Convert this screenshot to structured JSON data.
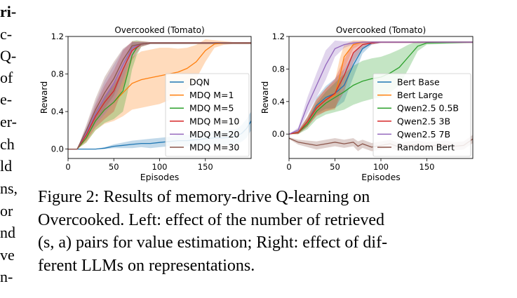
{
  "left_column": {
    "lines": [
      "ri-",
      "c-",
      "Q-",
      "of",
      "e-",
      "er-",
      "ch",
      "ld",
      "ns,",
      "or",
      "nd",
      "ve",
      "n-"
    ]
  },
  "caption": {
    "line1": "Figure 2:  Results of memory-drive Q-learning on",
    "line2": "Overcooked. Left: effect of the number of retrieved",
    "line3_math": "(s, a)",
    "line3_rest": " pairs for value estimation; Right: effect of dif-",
    "line4": "ferent LLMs on representations."
  },
  "chart_data": [
    {
      "type": "line",
      "title": "Overcooked (Tomato)",
      "xlabel": "Episodes",
      "ylabel": "Reward",
      "xlim": [
        0,
        200
      ],
      "ylim": [
        -0.1,
        1.2
      ],
      "xticks": [
        0,
        50,
        100,
        150
      ],
      "yticks": [
        0.0,
        0.4,
        0.8,
        1.2
      ],
      "xtick_labels": [
        "0",
        "50",
        "100",
        "150"
      ],
      "ytick_labels": [
        "0.0",
        "0.4",
        "0.8",
        "1.2"
      ],
      "legend_position": "bottom-right",
      "series": [
        {
          "name": "DQN",
          "color": "#1f77b4",
          "x": [
            0,
            10,
            20,
            30,
            40,
            50,
            60,
            70,
            80,
            90,
            100,
            110,
            120,
            130,
            140,
            150,
            160,
            170,
            180,
            185,
            190,
            195,
            200
          ],
          "y": [
            0,
            0,
            0,
            0,
            0.01,
            0.03,
            0.04,
            0.05,
            0.06,
            0.06,
            0.07,
            0.08,
            0.09,
            0.09,
            0.1,
            0.11,
            0.12,
            0.12,
            0.13,
            0.14,
            0.17,
            0.22,
            0.3
          ],
          "band_width": [
            0,
            0,
            0,
            0,
            0.01,
            0.02,
            0.03,
            0.04,
            0.04,
            0.05,
            0.05,
            0.05,
            0.06,
            0.06,
            0.06,
            0.07,
            0.07,
            0.08,
            0.08,
            0.08,
            0.09,
            0.1,
            0.1
          ]
        },
        {
          "name": "MDQ M=1",
          "color": "#ff7f0e",
          "x": [
            0,
            10,
            20,
            30,
            40,
            50,
            60,
            70,
            80,
            90,
            100,
            110,
            120,
            130,
            140,
            150,
            160,
            170,
            180,
            190,
            200
          ],
          "y": [
            0,
            0,
            0.12,
            0.3,
            0.42,
            0.5,
            0.6,
            0.7,
            0.74,
            0.76,
            0.78,
            0.8,
            0.82,
            0.86,
            0.93,
            1.05,
            1.12,
            1.13,
            1.13,
            1.13,
            1.13
          ],
          "band_width": [
            0,
            0,
            0.05,
            0.1,
            0.15,
            0.2,
            0.25,
            0.28,
            0.3,
            0.3,
            0.3,
            0.28,
            0.25,
            0.22,
            0.18,
            0.12,
            0.04,
            0.02,
            0.01,
            0.01,
            0.01
          ]
        },
        {
          "name": "MDQ M=5",
          "color": "#2ca02c",
          "x": [
            0,
            10,
            20,
            30,
            40,
            50,
            60,
            65,
            70,
            75,
            80,
            90,
            100,
            120,
            150,
            200
          ],
          "y": [
            0,
            0,
            0.12,
            0.3,
            0.42,
            0.5,
            0.62,
            0.8,
            1.0,
            1.08,
            1.12,
            1.13,
            1.13,
            1.13,
            1.13,
            1.13
          ],
          "band_width": [
            0,
            0,
            0.05,
            0.1,
            0.14,
            0.18,
            0.22,
            0.2,
            0.15,
            0.08,
            0.03,
            0.01,
            0.01,
            0.01,
            0.01,
            0.01
          ]
        },
        {
          "name": "MDQ M=10",
          "color": "#d62728",
          "x": [
            0,
            10,
            20,
            30,
            40,
            50,
            60,
            70,
            80,
            90,
            100,
            150,
            200
          ],
          "y": [
            0,
            0,
            0.15,
            0.35,
            0.5,
            0.62,
            0.85,
            1.05,
            1.12,
            1.13,
            1.13,
            1.13,
            1.13
          ],
          "band_width": [
            0,
            0,
            0.06,
            0.12,
            0.18,
            0.22,
            0.2,
            0.1,
            0.03,
            0.01,
            0.01,
            0.01,
            0.01
          ]
        },
        {
          "name": "MDQ M=20",
          "color": "#9467bd",
          "x": [
            0,
            10,
            20,
            30,
            40,
            50,
            60,
            70,
            80,
            90,
            100,
            150,
            200
          ],
          "y": [
            0,
            0,
            0.18,
            0.38,
            0.55,
            0.7,
            0.9,
            1.08,
            1.12,
            1.13,
            1.13,
            1.13,
            1.13
          ],
          "band_width": [
            0,
            0,
            0.06,
            0.12,
            0.18,
            0.2,
            0.16,
            0.06,
            0.02,
            0.01,
            0.01,
            0.01,
            0.01
          ]
        },
        {
          "name": "MDQ M=30",
          "color": "#8c564b",
          "x": [
            0,
            10,
            20,
            30,
            40,
            50,
            60,
            70,
            80,
            90,
            100,
            150,
            200
          ],
          "y": [
            0,
            0,
            0.2,
            0.42,
            0.6,
            0.75,
            0.95,
            1.1,
            1.12,
            1.13,
            1.13,
            1.13,
            1.13
          ],
          "band_width": [
            0,
            0,
            0.06,
            0.12,
            0.17,
            0.18,
            0.12,
            0.04,
            0.02,
            0.01,
            0.01,
            0.01,
            0.01
          ]
        }
      ]
    },
    {
      "type": "line",
      "title": "Overcooked (Tomato)",
      "xlabel": "Episodes",
      "ylabel": "Reward",
      "xlim": [
        0,
        200
      ],
      "ylim": [
        -0.3,
        1.2
      ],
      "xticks": [
        0,
        50,
        100,
        150
      ],
      "yticks": [
        0.0,
        0.4,
        0.8,
        1.2
      ],
      "xtick_labels": [
        "0",
        "50",
        "100",
        "150"
      ],
      "ytick_labels": [
        "0.0",
        "0.4",
        "0.8",
        "1.2"
      ],
      "legend_position": "bottom-right",
      "series": [
        {
          "name": "Bert Base",
          "color": "#1f77b4",
          "x": [
            0,
            10,
            20,
            30,
            40,
            50,
            60,
            70,
            80,
            90,
            100,
            150,
            200
          ],
          "y": [
            0,
            0.02,
            0.15,
            0.35,
            0.45,
            0.5,
            0.6,
            0.85,
            1.05,
            1.12,
            1.13,
            1.13,
            1.13
          ],
          "band_width": [
            0,
            0.02,
            0.06,
            0.1,
            0.14,
            0.18,
            0.2,
            0.15,
            0.06,
            0.02,
            0.01,
            0.01,
            0.01
          ]
        },
        {
          "name": "Bert Large",
          "color": "#ff7f0e",
          "x": [
            0,
            10,
            20,
            30,
            40,
            50,
            55,
            60,
            70,
            80,
            90,
            100,
            150,
            200
          ],
          "y": [
            0,
            0.02,
            0.15,
            0.33,
            0.42,
            0.48,
            0.7,
            0.95,
            1.1,
            1.13,
            1.13,
            1.13,
            1.13,
            1.13
          ],
          "band_width": [
            0,
            0.02,
            0.06,
            0.1,
            0.14,
            0.18,
            0.22,
            0.15,
            0.05,
            0.02,
            0.01,
            0.01,
            0.01,
            0.01
          ]
        },
        {
          "name": "Qwen2.5 0.5B",
          "color": "#2ca02c",
          "x": [
            0,
            10,
            20,
            30,
            40,
            50,
            60,
            70,
            80,
            90,
            100,
            110,
            120,
            130,
            140,
            150,
            200
          ],
          "y": [
            0,
            0.02,
            0.12,
            0.28,
            0.38,
            0.45,
            0.52,
            0.6,
            0.65,
            0.68,
            0.7,
            0.75,
            0.82,
            0.95,
            1.08,
            1.12,
            1.13
          ],
          "band_width": [
            0,
            0.02,
            0.06,
            0.1,
            0.14,
            0.18,
            0.22,
            0.24,
            0.25,
            0.25,
            0.25,
            0.24,
            0.22,
            0.15,
            0.06,
            0.02,
            0.01
          ]
        },
        {
          "name": "Qwen2.5 3B",
          "color": "#d62728",
          "x": [
            0,
            10,
            20,
            30,
            40,
            50,
            60,
            70,
            80,
            90,
            100,
            150,
            200
          ],
          "y": [
            0,
            0.02,
            0.15,
            0.32,
            0.42,
            0.5,
            0.72,
            1.0,
            1.1,
            1.12,
            1.13,
            1.13,
            1.13
          ],
          "band_width": [
            0,
            0.02,
            0.06,
            0.1,
            0.14,
            0.18,
            0.2,
            0.12,
            0.04,
            0.02,
            0.01,
            0.01,
            0.01
          ]
        },
        {
          "name": "Qwen2.5 7B",
          "color": "#9467bd",
          "x": [
            0,
            10,
            20,
            30,
            40,
            50,
            60,
            70,
            80,
            90,
            100,
            150,
            200
          ],
          "y": [
            0,
            0.05,
            0.35,
            0.6,
            0.85,
            1.05,
            1.1,
            1.12,
            1.13,
            1.13,
            1.13,
            1.13,
            1.13
          ],
          "band_width": [
            0,
            0.03,
            0.1,
            0.15,
            0.18,
            0.1,
            0.04,
            0.02,
            0.01,
            0.01,
            0.01,
            0.01,
            0.01
          ]
        },
        {
          "name": "Random Bert",
          "color": "#8c564b",
          "x": [
            0,
            10,
            20,
            30,
            40,
            50,
            60,
            70,
            75,
            80,
            90,
            100,
            110,
            120,
            130,
            140,
            150,
            160,
            170,
            180,
            190,
            200
          ],
          "y": [
            -0.05,
            -0.1,
            -0.12,
            -0.14,
            -0.12,
            -0.1,
            -0.12,
            -0.1,
            -0.15,
            -0.12,
            -0.16,
            -0.14,
            -0.12,
            -0.16,
            -0.14,
            -0.13,
            -0.15,
            -0.14,
            -0.13,
            -0.15,
            -0.14,
            -0.06
          ],
          "band_width": [
            0.01,
            0.03,
            0.04,
            0.05,
            0.05,
            0.05,
            0.05,
            0.05,
            0.06,
            0.05,
            0.05,
            0.05,
            0.05,
            0.05,
            0.05,
            0.05,
            0.05,
            0.05,
            0.05,
            0.05,
            0.05,
            0.05
          ]
        }
      ]
    }
  ]
}
